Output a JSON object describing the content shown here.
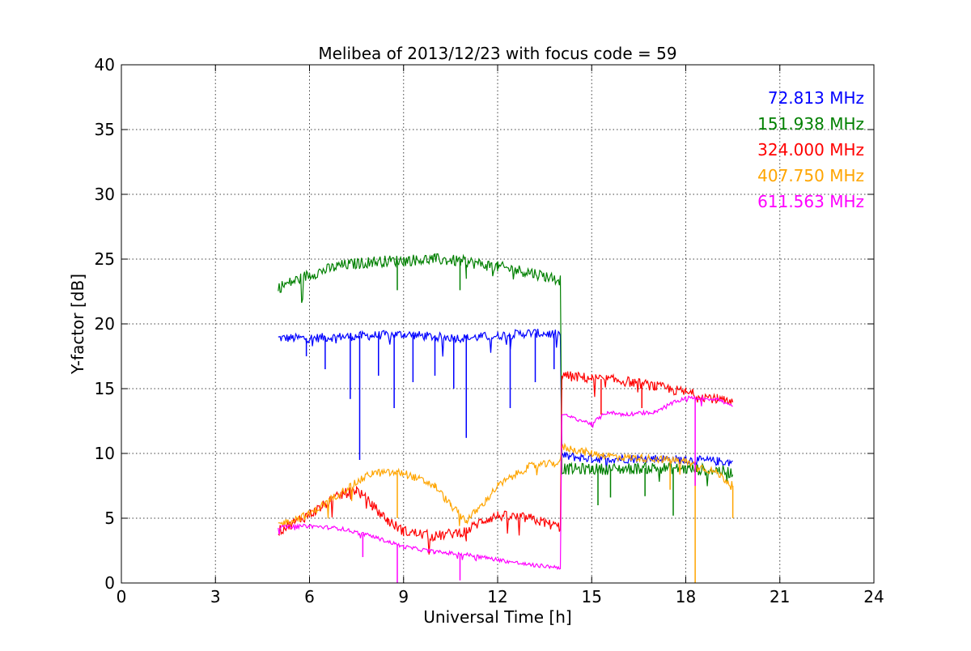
{
  "chart_data": {
    "type": "line",
    "title": "Melibea of 2013/12/23 with focus code = 59",
    "xlabel": "Universal Time [h]",
    "ylabel": "Y-factor [dB]",
    "xlim": [
      0,
      24
    ],
    "ylim": [
      0,
      40
    ],
    "xticks": [
      0,
      3,
      6,
      9,
      12,
      15,
      18,
      21,
      24
    ],
    "xtick_labels": [
      "0",
      "3",
      "6",
      "9",
      "12",
      "15",
      "18",
      "21",
      "24"
    ],
    "yticks": [
      0,
      5,
      10,
      15,
      20,
      25,
      30,
      35,
      40
    ],
    "ytick_labels": [
      "0",
      "5",
      "10",
      "15",
      "20",
      "25",
      "30",
      "35",
      "40"
    ],
    "grid": true,
    "legend_placement": "top-right",
    "series": [
      {
        "name": "72.813 MHz",
        "color": "#0000ff",
        "noise": 0.35,
        "points": [
          [
            5.0,
            18.9
          ],
          [
            6.0,
            18.9
          ],
          [
            7.0,
            19.0
          ],
          [
            8.0,
            19.1
          ],
          [
            9.0,
            19.2
          ],
          [
            10.0,
            19.0
          ],
          [
            11.0,
            18.9
          ],
          [
            12.0,
            19.1
          ],
          [
            13.0,
            19.3
          ],
          [
            14.0,
            19.2
          ],
          [
            14.05,
            9.8
          ],
          [
            15.0,
            9.6
          ],
          [
            16.0,
            9.6
          ],
          [
            17.0,
            9.6
          ],
          [
            18.0,
            9.5
          ],
          [
            19.0,
            9.4
          ],
          [
            19.5,
            9.3
          ]
        ],
        "dips": [
          [
            5.9,
            17.5
          ],
          [
            6.5,
            16.5
          ],
          [
            7.3,
            14.2
          ],
          [
            7.6,
            9.5
          ],
          [
            8.2,
            16.0
          ],
          [
            8.7,
            13.5
          ],
          [
            9.3,
            15.5
          ],
          [
            10.0,
            16.0
          ],
          [
            10.6,
            15.0
          ],
          [
            11.0,
            11.2
          ],
          [
            12.4,
            13.5
          ],
          [
            13.2,
            15.5
          ],
          [
            13.8,
            16.5
          ]
        ]
      },
      {
        "name": "151.938 MHz",
        "color": "#008000",
        "noise": 0.45,
        "points": [
          [
            5.0,
            22.8
          ],
          [
            6.0,
            23.8
          ],
          [
            7.0,
            24.5
          ],
          [
            8.0,
            24.8
          ],
          [
            9.0,
            24.9
          ],
          [
            10.0,
            25.0
          ],
          [
            11.0,
            24.8
          ],
          [
            12.0,
            24.4
          ],
          [
            13.0,
            24.0
          ],
          [
            14.0,
            23.4
          ],
          [
            14.05,
            8.8
          ],
          [
            15.0,
            8.8
          ],
          [
            16.0,
            8.8
          ],
          [
            17.0,
            8.9
          ],
          [
            18.0,
            8.8
          ],
          [
            19.0,
            8.7
          ],
          [
            19.5,
            8.5
          ]
        ],
        "dips": [
          [
            8.8,
            22.6
          ],
          [
            10.8,
            22.6
          ],
          [
            15.2,
            6.0
          ],
          [
            15.6,
            6.6
          ],
          [
            16.7,
            6.7
          ],
          [
            17.6,
            5.2
          ]
        ]
      },
      {
        "name": "324.000 MHz",
        "color": "#ff0000",
        "noise": 0.4,
        "points": [
          [
            5.0,
            4.0
          ],
          [
            6.0,
            5.3
          ],
          [
            7.0,
            6.8
          ],
          [
            7.5,
            7.2
          ],
          [
            8.0,
            6.0
          ],
          [
            8.5,
            4.8
          ],
          [
            9.0,
            4.0
          ],
          [
            10.0,
            3.6
          ],
          [
            11.0,
            4.0
          ],
          [
            11.5,
            4.8
          ],
          [
            12.0,
            5.2
          ],
          [
            13.0,
            5.0
          ],
          [
            14.0,
            4.3
          ],
          [
            14.05,
            16.0
          ],
          [
            15.0,
            15.8
          ],
          [
            16.0,
            15.6
          ],
          [
            17.0,
            15.2
          ],
          [
            18.0,
            14.7
          ],
          [
            19.0,
            14.2
          ],
          [
            19.5,
            13.8
          ]
        ],
        "dips": [
          [
            15.3,
            13.0
          ],
          [
            16.6,
            13.5
          ]
        ]
      },
      {
        "name": "407.750 MHz",
        "color": "#ffa500",
        "noise": 0.3,
        "points": [
          [
            5.0,
            4.5
          ],
          [
            6.0,
            5.3
          ],
          [
            7.0,
            7.0
          ],
          [
            8.0,
            8.5
          ],
          [
            9.0,
            8.5
          ],
          [
            9.5,
            8.0
          ],
          [
            10.0,
            7.5
          ],
          [
            10.5,
            6.0
          ],
          [
            11.0,
            4.8
          ],
          [
            11.5,
            6.0
          ],
          [
            12.0,
            7.5
          ],
          [
            13.0,
            9.0
          ],
          [
            14.0,
            9.3
          ],
          [
            14.05,
            10.5
          ],
          [
            15.0,
            10.0
          ],
          [
            16.0,
            9.7
          ],
          [
            17.0,
            9.6
          ],
          [
            18.0,
            9.4
          ],
          [
            19.0,
            8.5
          ],
          [
            19.5,
            7.5
          ]
        ],
        "dips": [
          [
            8.8,
            5.0
          ],
          [
            18.3,
            0.0
          ],
          [
            19.5,
            5.0
          ],
          [
            17.5,
            7.2
          ]
        ]
      },
      {
        "name": "611.563 MHz",
        "color": "#ff00ff",
        "noise": 0.15,
        "points": [
          [
            5.0,
            4.3
          ],
          [
            6.0,
            4.4
          ],
          [
            7.0,
            4.2
          ],
          [
            8.0,
            3.6
          ],
          [
            9.0,
            2.8
          ],
          [
            10.0,
            2.4
          ],
          [
            11.0,
            2.2
          ],
          [
            12.0,
            1.8
          ],
          [
            13.0,
            1.4
          ],
          [
            14.0,
            1.2
          ],
          [
            14.05,
            13.0
          ],
          [
            15.0,
            12.3
          ],
          [
            15.5,
            13.2
          ],
          [
            16.0,
            13.0
          ],
          [
            17.0,
            13.2
          ],
          [
            17.5,
            13.8
          ],
          [
            18.0,
            14.3
          ],
          [
            19.0,
            14.2
          ],
          [
            19.5,
            13.6
          ]
        ],
        "dips": [
          [
            7.7,
            2.0
          ],
          [
            8.8,
            0.0
          ],
          [
            10.8,
            0.2
          ],
          [
            18.3,
            7.5
          ]
        ]
      }
    ]
  }
}
